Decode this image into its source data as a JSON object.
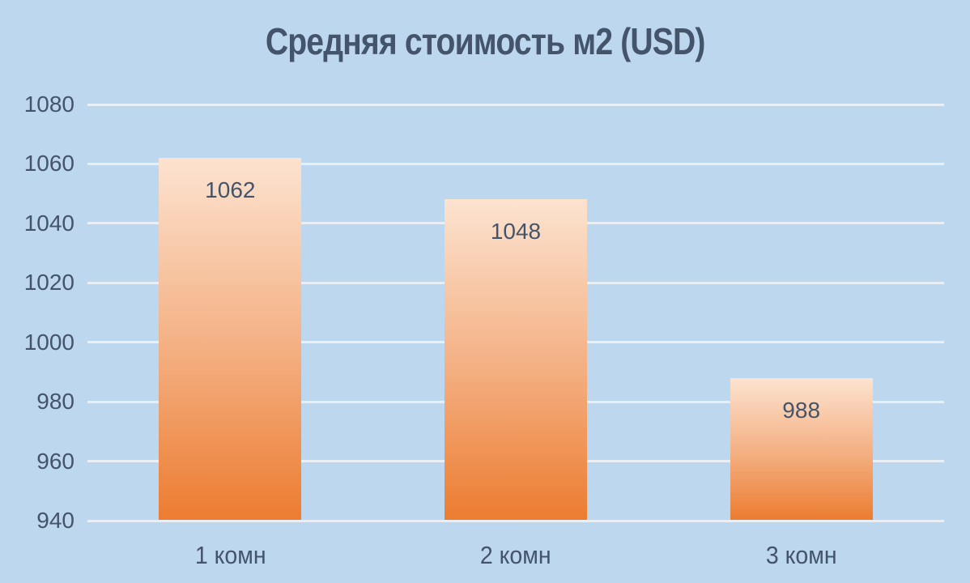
{
  "chart_data": {
    "type": "bar",
    "title": "Средняя стоимость м2 (USD)",
    "categories": [
      "1 комн",
      "2 комн",
      "3 комн"
    ],
    "values": [
      1062,
      1048,
      988
    ],
    "data_labels": [
      "1062",
      "1048",
      "988"
    ],
    "xlabel": "",
    "ylabel": "",
    "ylim": [
      940,
      1080
    ],
    "ytick_step": 20,
    "yticks": [
      1080,
      1060,
      1040,
      1020,
      1000,
      980,
      960,
      940
    ],
    "grid": true,
    "legend_position": "none",
    "colors": {
      "background": "#BDD7EE",
      "gridline": "#E9EFF6",
      "axis_line": "#E9EFF6",
      "bar_gradient_top": "#FCE3D0",
      "bar_gradient_mid": "#F4B083",
      "bar_gradient_bottom": "#EC7C30",
      "title_text": "#44546A",
      "tick_text": "#44546A",
      "data_label_text": "#44546A"
    }
  }
}
